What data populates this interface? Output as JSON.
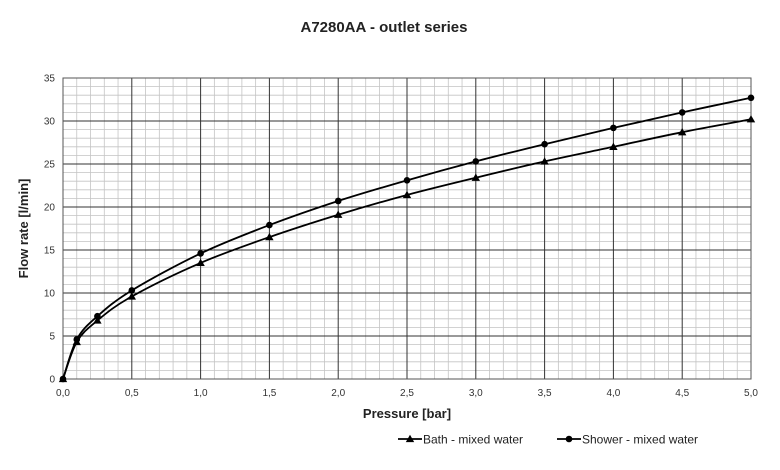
{
  "chart_data": {
    "type": "line",
    "title": "A7280AA - outlet series",
    "xlabel": "Pressure [bar]",
    "ylabel": "Flow rate [l/min]",
    "xlim": [
      0,
      5
    ],
    "ylim": [
      0,
      35
    ],
    "x_ticks": [
      "0,0",
      "0,5",
      "1,0",
      "1,5",
      "2,0",
      "2,5",
      "3,0",
      "3,5",
      "4,0",
      "4,5",
      "5,0"
    ],
    "y_ticks": [
      "0",
      "5",
      "10",
      "15",
      "20",
      "25",
      "30",
      "35"
    ],
    "x_tick_values": [
      0,
      0.5,
      1,
      1.5,
      2,
      2.5,
      3,
      3.5,
      4,
      4.5,
      5
    ],
    "y_tick_values": [
      0,
      5,
      10,
      15,
      20,
      25,
      30,
      35
    ],
    "x_major_step": 0.5,
    "x_minor_step": 0.1,
    "y_major_step": 5,
    "y_minor_step": 1,
    "grid": true,
    "legend_position": "bottom-right",
    "series": [
      {
        "name": "Bath - mixed water",
        "marker": "triangle",
        "color": "#000000",
        "points": [
          [
            0,
            0
          ],
          [
            0.1,
            4.3
          ],
          [
            0.25,
            6.8
          ],
          [
            0.5,
            9.6
          ],
          [
            1.0,
            13.5
          ],
          [
            1.5,
            16.5
          ],
          [
            2.0,
            19.1
          ],
          [
            2.5,
            21.4
          ],
          [
            3.0,
            23.4
          ],
          [
            3.5,
            25.3
          ],
          [
            4.0,
            27.0
          ],
          [
            4.5,
            28.7
          ],
          [
            5.0,
            30.2
          ]
        ]
      },
      {
        "name": "Shower - mixed water",
        "marker": "circle",
        "color": "#000000",
        "points": [
          [
            0,
            0
          ],
          [
            0.1,
            4.6
          ],
          [
            0.25,
            7.3
          ],
          [
            0.5,
            10.3
          ],
          [
            1.0,
            14.6
          ],
          [
            1.5,
            17.9
          ],
          [
            2.0,
            20.7
          ],
          [
            2.5,
            23.1
          ],
          [
            3.0,
            25.3
          ],
          [
            3.5,
            27.3
          ],
          [
            4.0,
            29.2
          ],
          [
            4.5,
            31.0
          ],
          [
            5.0,
            32.7
          ]
        ]
      }
    ]
  }
}
